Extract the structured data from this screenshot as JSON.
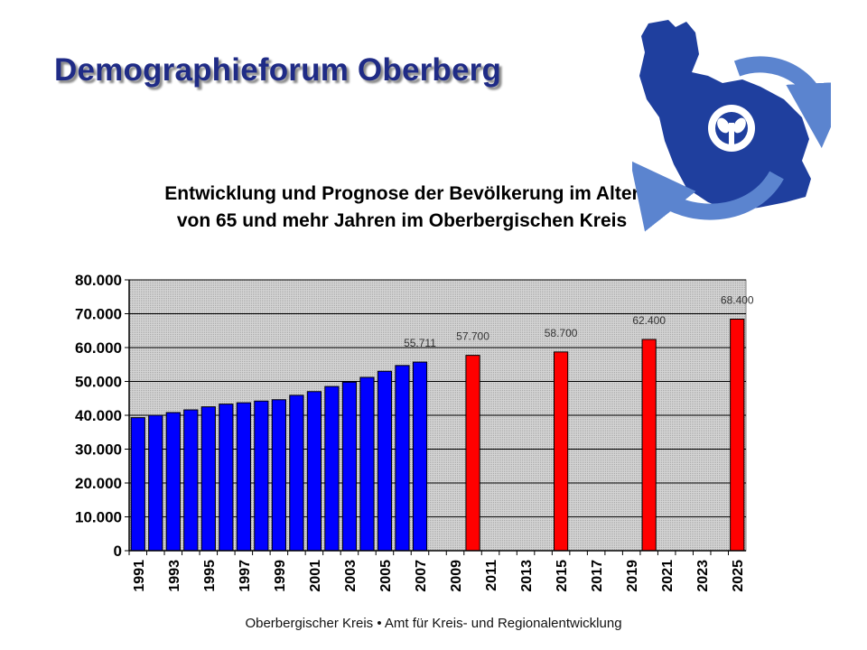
{
  "header": {
    "title": "Demographieforum Oberberg"
  },
  "chart_title": {
    "line1": "Entwicklung und Prognose der Bevölkerung im Alter",
    "line2": "von 65 und mehr Jahren im Oberbergischen Kreis"
  },
  "footer": {
    "text": "Oberbergischer Kreis • Amt für Kreis- und Regionalentwicklung"
  },
  "logo": {
    "icon": "oberberg-region-logo-icon",
    "colors": {
      "region": "#1f3f9e",
      "arrows": "#5b84cf",
      "emblem": "#ffffff"
    }
  },
  "colors": {
    "actual": "#0000ff",
    "forecast": "#ff0000",
    "plot_background": "#c0c0c0",
    "title": "#1f2b86"
  },
  "chart_data": {
    "type": "bar",
    "title": "Entwicklung und Prognose der Bevölkerung im Alter von 65 und mehr Jahren im Oberbergischen Kreis",
    "ylim": [
      0,
      80000
    ],
    "yticks": [
      0,
      10000,
      20000,
      30000,
      40000,
      50000,
      60000,
      70000,
      80000
    ],
    "ytick_labels": [
      "0",
      "10.000",
      "20.000",
      "30.000",
      "40.000",
      "50.000",
      "60.000",
      "70.000",
      "80.000"
    ],
    "grid": true,
    "categories": [
      "1991",
      "1992",
      "1993",
      "1994",
      "1995",
      "1996",
      "1997",
      "1998",
      "1999",
      "2000",
      "2001",
      "2002",
      "2003",
      "2004",
      "2005",
      "2006",
      "2007",
      "2008",
      "2009",
      "2010",
      "2011",
      "2012",
      "2013",
      "2014",
      "2015",
      "2016",
      "2017",
      "2018",
      "2019",
      "2020",
      "2021",
      "2022",
      "2023",
      "2024",
      "2025"
    ],
    "x_tick_labels": [
      "1991",
      "1993",
      "1995",
      "1997",
      "1999",
      "2001",
      "2003",
      "2005",
      "2007",
      "2009",
      "2011",
      "2013",
      "2015",
      "2017",
      "2019",
      "2021",
      "2023",
      "2025"
    ],
    "series": [
      {
        "kind": "actual",
        "color": "#0000ff",
        "x": [
          "1991",
          "1992",
          "1993",
          "1994",
          "1995",
          "1996",
          "1997",
          "1998",
          "1999",
          "2000",
          "2001",
          "2002",
          "2003",
          "2004",
          "2005",
          "2006",
          "2007"
        ],
        "values": [
          39300,
          40000,
          40800,
          41600,
          42500,
          43300,
          43700,
          44200,
          44600,
          45900,
          47000,
          48500,
          49800,
          51200,
          53000,
          54700,
          55711
        ]
      },
      {
        "kind": "forecast",
        "color": "#ff0000",
        "x": [
          "2010",
          "2015",
          "2020",
          "2025"
        ],
        "values": [
          57700,
          58700,
          62400,
          68400
        ]
      }
    ],
    "data_labels": [
      {
        "x": "2007",
        "text": "55.711"
      },
      {
        "x": "2010",
        "text": "57.700"
      },
      {
        "x": "2015",
        "text": "58.700"
      },
      {
        "x": "2020",
        "text": "62.400"
      },
      {
        "x": "2025",
        "text": "68.400"
      }
    ]
  }
}
